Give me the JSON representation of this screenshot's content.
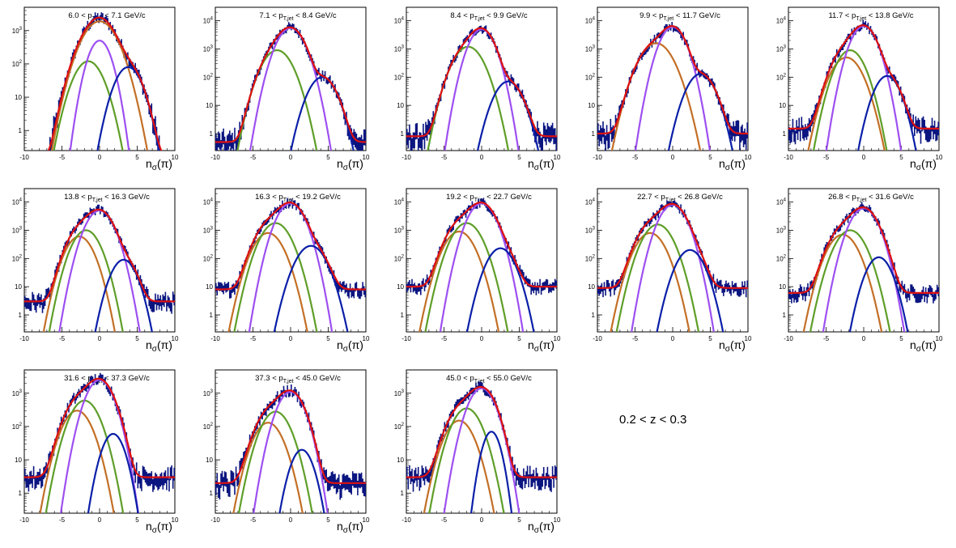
{
  "figure": {
    "annotation": "0.2 < z < 0.3",
    "colors": {
      "data": "#0a1580",
      "total_fit": "#dd1111",
      "pion": "#9d4ff0",
      "kaon": "#5e9e28",
      "proton": "#c36f26",
      "electron": "#0a1fa8"
    }
  },
  "chart_data": [
    {
      "type": "line",
      "title_lo": "6.0",
      "title_hi": "7.1",
      "title_unit": "GeV/c",
      "xlabel_main": "n",
      "xlabel_sub": "σ",
      "xlabel_arg": "(π)",
      "xlim": [
        -10,
        10
      ],
      "ylim": [
        0.25,
        5000
      ],
      "yscale": "log",
      "xticks": [
        -10,
        -5,
        0,
        5,
        10
      ],
      "yticks": [
        1,
        10,
        100,
        1000
      ],
      "components": [
        {
          "name": "pion",
          "A": 500,
          "mu": 0,
          "sigma": 1.0
        },
        {
          "name": "kaon",
          "A": 120,
          "mu": -1.5,
          "sigma": 1.3
        },
        {
          "name": "proton",
          "A": 1900,
          "mu": 0,
          "sigma": 1.5
        },
        {
          "name": "electron",
          "A": 80,
          "mu": 3.8,
          "sigma": 1.2
        }
      ],
      "background": 0.15
    },
    {
      "type": "line",
      "title_lo": "7.1",
      "title_hi": "8.4",
      "title_unit": "GeV/c",
      "xlabel_main": "n",
      "xlabel_sub": "σ",
      "xlabel_arg": "(π)",
      "xlim": [
        -10,
        10
      ],
      "ylim": [
        0.25,
        30000
      ],
      "yscale": "log",
      "xticks": [
        -10,
        -5,
        0,
        5,
        10
      ],
      "yticks": [
        1,
        10,
        100,
        1000,
        10000
      ],
      "components": [
        {
          "name": "pion",
          "A": 5500,
          "mu": 0,
          "sigma": 1.2
        },
        {
          "name": "kaon",
          "A": 900,
          "mu": -1.8,
          "sigma": 1.3
        },
        {
          "name": "proton",
          "A": 0,
          "mu": -3,
          "sigma": 1.2
        },
        {
          "name": "electron",
          "A": 100,
          "mu": 4.2,
          "sigma": 1.2
        }
      ],
      "background": 0.5
    },
    {
      "type": "line",
      "title_lo": "8.4",
      "title_hi": "9.9",
      "title_unit": "GeV/c",
      "xlabel_main": "n",
      "xlabel_sub": "σ",
      "xlabel_arg": "(π)",
      "xlim": [
        -10,
        10
      ],
      "ylim": [
        0.25,
        30000
      ],
      "yscale": "log",
      "xticks": [
        -10,
        -5,
        0,
        5,
        10
      ],
      "yticks": [
        1,
        10,
        100,
        1000,
        10000
      ],
      "components": [
        {
          "name": "pion",
          "A": 5000,
          "mu": 0,
          "sigma": 1.1
        },
        {
          "name": "kaon",
          "A": 1200,
          "mu": -1.8,
          "sigma": 1.3
        },
        {
          "name": "proton",
          "A": 0,
          "mu": -3,
          "sigma": 1.2
        },
        {
          "name": "electron",
          "A": 70,
          "mu": 3.5,
          "sigma": 1.2
        }
      ],
      "background": 0.8
    },
    {
      "type": "line",
      "title_lo": "9.9",
      "title_hi": "11.7",
      "title_unit": "GeV/c",
      "xlabel_main": "n",
      "xlabel_sub": "σ",
      "xlabel_arg": "(π)",
      "xlim": [
        -10,
        10
      ],
      "ylim": [
        0.25,
        30000
      ],
      "yscale": "log",
      "xticks": [
        -10,
        -5,
        0,
        5,
        10
      ],
      "yticks": [
        1,
        10,
        100,
        1000,
        10000
      ],
      "components": [
        {
          "name": "pion",
          "A": 6000,
          "mu": 0,
          "sigma": 1.1
        },
        {
          "name": "kaon",
          "A": 0,
          "mu": -1.8,
          "sigma": 1.3
        },
        {
          "name": "proton",
          "A": 1600,
          "mu": -2.2,
          "sigma": 1.4
        },
        {
          "name": "electron",
          "A": 130,
          "mu": 3.7,
          "sigma": 1.2
        }
      ],
      "background": 1.0
    },
    {
      "type": "line",
      "title_lo": "11.7",
      "title_hi": "13.8",
      "title_unit": "GeV/c",
      "xlabel_main": "n",
      "xlabel_sub": "σ",
      "xlabel_arg": "(π)",
      "xlim": [
        -10,
        10
      ],
      "ylim": [
        0.25,
        30000
      ],
      "yscale": "log",
      "xticks": [
        -10,
        -5,
        0,
        5,
        10
      ],
      "yticks": [
        1,
        10,
        100,
        1000,
        10000
      ],
      "components": [
        {
          "name": "pion",
          "A": 6500,
          "mu": 0,
          "sigma": 1.1
        },
        {
          "name": "kaon",
          "A": 900,
          "mu": -1.8,
          "sigma": 1.2
        },
        {
          "name": "proton",
          "A": 500,
          "mu": -2.3,
          "sigma": 1.3
        },
        {
          "name": "electron",
          "A": 110,
          "mu": 3.1,
          "sigma": 1.1
        }
      ],
      "background": 1.5
    },
    {
      "type": "line",
      "title_lo": "13.8",
      "title_hi": "16.3",
      "title_unit": "GeV/c",
      "xlabel_main": "n",
      "xlabel_sub": "σ",
      "xlabel_arg": "(π)",
      "xlim": [
        -10,
        10
      ],
      "ylim": [
        0.25,
        30000
      ],
      "yscale": "log",
      "xticks": [
        -10,
        -5,
        0,
        5,
        10
      ],
      "yticks": [
        1,
        10,
        100,
        1000,
        10000
      ],
      "components": [
        {
          "name": "pion",
          "A": 5000,
          "mu": 0,
          "sigma": 1.2
        },
        {
          "name": "kaon",
          "A": 1000,
          "mu": -1.8,
          "sigma": 1.2
        },
        {
          "name": "proton",
          "A": 600,
          "mu": -2.7,
          "sigma": 1.2
        },
        {
          "name": "electron",
          "A": 90,
          "mu": 3.2,
          "sigma": 1.1
        }
      ],
      "background": 3.0
    },
    {
      "type": "line",
      "title_lo": "16.3",
      "title_hi": "19.2",
      "title_unit": "GeV/c",
      "xlabel_main": "n",
      "xlabel_sub": "σ",
      "xlabel_arg": "(π)",
      "xlim": [
        -10,
        10
      ],
      "ylim": [
        0.25,
        30000
      ],
      "yscale": "log",
      "xticks": [
        -10,
        -5,
        0,
        5,
        10
      ],
      "yticks": [
        1,
        10,
        100,
        1000,
        10000
      ],
      "components": [
        {
          "name": "pion",
          "A": 9000,
          "mu": 0,
          "sigma": 1.2
        },
        {
          "name": "kaon",
          "A": 1800,
          "mu": -2.0,
          "sigma": 1.3
        },
        {
          "name": "proton",
          "A": 800,
          "mu": -3.0,
          "sigma": 1.3
        },
        {
          "name": "electron",
          "A": 280,
          "mu": 2.7,
          "sigma": 1.3
        }
      ],
      "background": 8.0
    },
    {
      "type": "line",
      "title_lo": "19.2",
      "title_hi": "22.7",
      "title_unit": "GeV/c",
      "xlabel_main": "n",
      "xlabel_sub": "σ",
      "xlabel_arg": "(π)",
      "xlim": [
        -10,
        10
      ],
      "ylim": [
        0.25,
        30000
      ],
      "yscale": "log",
      "xticks": [
        -10,
        -5,
        0,
        5,
        10
      ],
      "yticks": [
        1,
        10,
        100,
        1000,
        10000
      ],
      "components": [
        {
          "name": "pion",
          "A": 9000,
          "mu": 0,
          "sigma": 1.2
        },
        {
          "name": "kaon",
          "A": 1800,
          "mu": -2.0,
          "sigma": 1.3
        },
        {
          "name": "proton",
          "A": 900,
          "mu": -3.0,
          "sigma": 1.3
        },
        {
          "name": "electron",
          "A": 230,
          "mu": 2.5,
          "sigma": 1.2
        }
      ],
      "background": 10.0
    },
    {
      "type": "line",
      "title_lo": "22.7",
      "title_hi": "26.8",
      "title_unit": "GeV/c",
      "xlabel_main": "n",
      "xlabel_sub": "σ",
      "xlabel_arg": "(π)",
      "xlim": [
        -10,
        10
      ],
      "ylim": [
        0.25,
        30000
      ],
      "yscale": "log",
      "xticks": [
        -10,
        -5,
        0,
        5,
        10
      ],
      "yticks": [
        1,
        10,
        100,
        1000,
        10000
      ],
      "components": [
        {
          "name": "pion",
          "A": 8000,
          "mu": 0,
          "sigma": 1.2
        },
        {
          "name": "kaon",
          "A": 1600,
          "mu": -2.0,
          "sigma": 1.3
        },
        {
          "name": "proton",
          "A": 800,
          "mu": -3.0,
          "sigma": 1.3
        },
        {
          "name": "electron",
          "A": 200,
          "mu": 2.3,
          "sigma": 1.2
        }
      ],
      "background": 9.0
    },
    {
      "type": "line",
      "title_lo": "26.8",
      "title_hi": "31.6",
      "title_unit": "GeV/c",
      "xlabel_main": "n",
      "xlabel_sub": "σ",
      "xlabel_arg": "(π)",
      "xlim": [
        -10,
        10
      ],
      "ylim": [
        0.25,
        30000
      ],
      "yscale": "log",
      "xticks": [
        -10,
        -5,
        0,
        5,
        10
      ],
      "yticks": [
        1,
        10,
        100,
        1000,
        10000
      ],
      "components": [
        {
          "name": "pion",
          "A": 6000,
          "mu": 0,
          "sigma": 1.2
        },
        {
          "name": "kaon",
          "A": 1000,
          "mu": -1.8,
          "sigma": 1.3
        },
        {
          "name": "proton",
          "A": 700,
          "mu": -2.8,
          "sigma": 1.3
        },
        {
          "name": "electron",
          "A": 110,
          "mu": 2.0,
          "sigma": 1.1
        }
      ],
      "background": 6.0
    },
    {
      "type": "line",
      "title_lo": "31.6",
      "title_hi": "37.3",
      "title_unit": "GeV/c",
      "xlabel_main": "n",
      "xlabel_sub": "σ",
      "xlabel_arg": "(π)",
      "xlim": [
        -10,
        10
      ],
      "ylim": [
        0.25,
        5000
      ],
      "yscale": "log",
      "xticks": [
        -10,
        -5,
        0,
        5,
        10
      ],
      "yticks": [
        1,
        10,
        100,
        1000
      ],
      "components": [
        {
          "name": "pion",
          "A": 2500,
          "mu": 0,
          "sigma": 1.2
        },
        {
          "name": "kaon",
          "A": 600,
          "mu": -2.0,
          "sigma": 1.3
        },
        {
          "name": "proton",
          "A": 300,
          "mu": -3.0,
          "sigma": 1.3
        },
        {
          "name": "electron",
          "A": 60,
          "mu": 1.8,
          "sigma": 1.0
        }
      ],
      "background": 3.0
    },
    {
      "type": "line",
      "title_lo": "37.3",
      "title_hi": "45.0",
      "title_unit": "GeV/c",
      "xlabel_main": "n",
      "xlabel_sub": "σ",
      "xlabel_arg": "(π)",
      "xlim": [
        -10,
        10
      ],
      "ylim": [
        0.25,
        5000
      ],
      "yscale": "log",
      "xticks": [
        -10,
        -5,
        0,
        5,
        10
      ],
      "yticks": [
        1,
        10,
        100,
        1000
      ],
      "components": [
        {
          "name": "pion",
          "A": 1100,
          "mu": 0,
          "sigma": 1.2
        },
        {
          "name": "kaon",
          "A": 280,
          "mu": -2.0,
          "sigma": 1.3
        },
        {
          "name": "proton",
          "A": 130,
          "mu": -3.0,
          "sigma": 1.3
        },
        {
          "name": "electron",
          "A": 20,
          "mu": 1.5,
          "sigma": 1.0
        }
      ],
      "background": 2.0
    },
    {
      "type": "line",
      "title_lo": "45.0",
      "title_hi": "55.0",
      "title_unit": "GeV/c",
      "xlabel_main": "n",
      "xlabel_sub": "σ",
      "xlabel_arg": "(π)",
      "xlim": [
        -10,
        10
      ],
      "ylim": [
        0.25,
        5000
      ],
      "yscale": "log",
      "xticks": [
        -10,
        -5,
        0,
        5,
        10
      ],
      "yticks": [
        1,
        10,
        100,
        1000
      ],
      "components": [
        {
          "name": "pion",
          "A": 1400,
          "mu": 0,
          "sigma": 1.2
        },
        {
          "name": "kaon",
          "A": 350,
          "mu": -2.0,
          "sigma": 1.3
        },
        {
          "name": "proton",
          "A": 150,
          "mu": -3.0,
          "sigma": 1.3
        },
        {
          "name": "electron",
          "A": 70,
          "mu": 1.3,
          "sigma": 0.8
        }
      ],
      "background": 3.0
    }
  ]
}
